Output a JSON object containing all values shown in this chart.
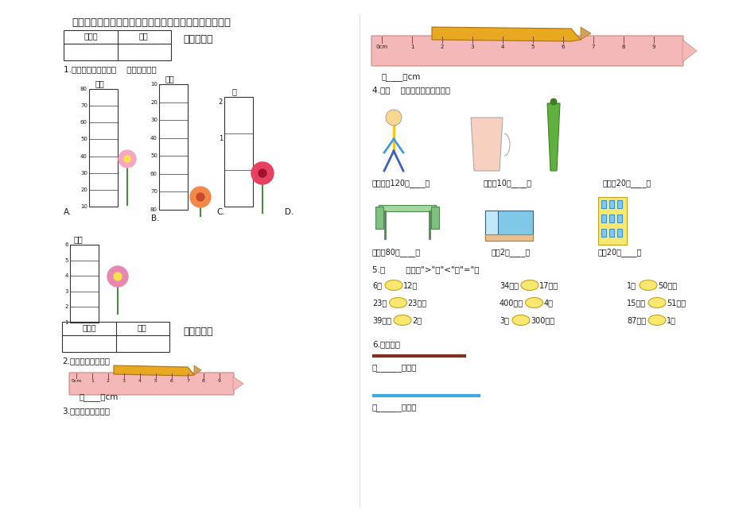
{
  "title": "人教版数学二年级上册第一单元《长度单位》单元测试卷",
  "bg_color": "#ffffff",
  "table_headers": [
    "评卷人",
    "得分"
  ],
  "section1_title": "一、选择题",
  "q1": "1.请你仔细观察，第（    ）枝花最高。",
  "section2_title": "二、填空题",
  "q2": "2.测一测，量一量。",
  "q2_blank": "（____）cm",
  "q3": "3.测一测，量一量。",
  "q3_blank": "（____）cm",
  "q4": "4.在（    ）里填上合适的单位。",
  "q4_items": [
    "亮亮身高120（____）",
    "杯子高10（____）",
    "黄瓜长20（____）",
    "课桌高80（____）",
    "床长2（____）",
    "楼高20（____）"
  ],
  "q5": "5.在        里填上\">\"、\"<\"或\"=\"。",
  "q5_items": [
    [
      "6米",
      "12米"
    ],
    [
      "34厘米",
      "17厘米"
    ],
    [
      "1米",
      "50厘米"
    ],
    [
      "23米",
      "23厘米"
    ],
    [
      "400厘米",
      "4米"
    ],
    [
      "15厘米",
      "51厘米"
    ],
    [
      "39厘米",
      "2米"
    ],
    [
      "3米",
      "300厘米"
    ],
    [
      "87厘米",
      "1米"
    ]
  ],
  "q6": "6.量一量。",
  "q6_items": [
    "（______）厘米",
    "（______）厘米"
  ]
}
